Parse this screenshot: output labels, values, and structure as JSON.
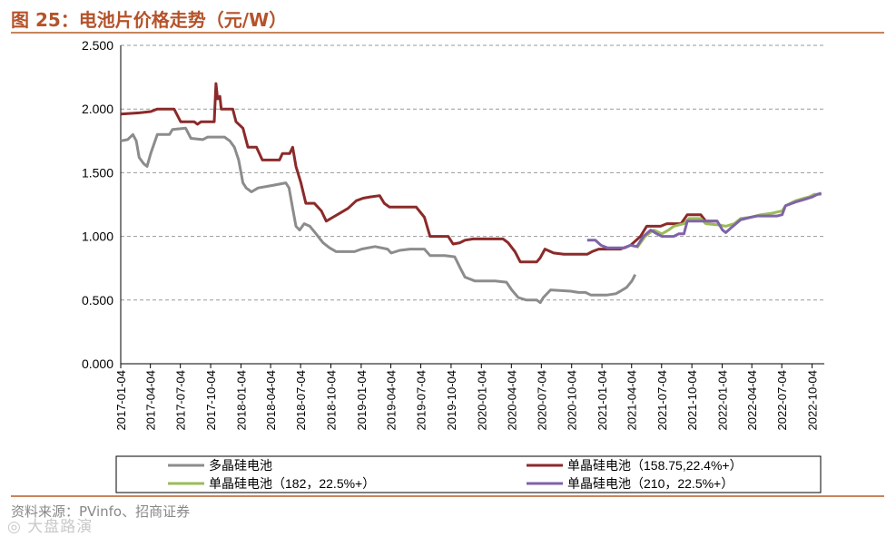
{
  "header": {
    "title": "图 25：电池片价格走势（元/W）"
  },
  "footer": {
    "source": "资料来源：PVinfo、招商证券",
    "watermark": "◎ 大盘路演"
  },
  "chart_data": {
    "type": "line",
    "title": "图 25：电池片价格走势（元/W）",
    "ylabel": "",
    "xlabel": "",
    "ylim": [
      0,
      2.5
    ],
    "yticks": [
      "0.000",
      "0.500",
      "1.000",
      "1.500",
      "2.000",
      "2.500"
    ],
    "xticks": [
      "2017-01-04",
      "2017-04-04",
      "2017-07-04",
      "2017-10-04",
      "2018-01-04",
      "2018-04-04",
      "2018-07-04",
      "2018-10-04",
      "2019-01-04",
      "2019-04-04",
      "2019-07-04",
      "2019-10-04",
      "2020-01-04",
      "2020-04-04",
      "2020-07-04",
      "2020-10-04",
      "2021-01-04",
      "2021-04-04",
      "2021-07-04",
      "2021-10-04",
      "2022-01-04",
      "2022-04-04",
      "2022-07-04",
      "2022-10-04"
    ],
    "grid": "horizontal dashed",
    "legend_position": "bottom",
    "series": [
      {
        "name": "多晶硅电池",
        "color": "#8c8c8c",
        "points": [
          [
            "2017-01-04",
            1.75
          ],
          [
            "2017-01-25",
            1.76
          ],
          [
            "2017-02-10",
            1.8
          ],
          [
            "2017-02-20",
            1.75
          ],
          [
            "2017-03-01",
            1.62
          ],
          [
            "2017-03-15",
            1.57
          ],
          [
            "2017-03-25",
            1.55
          ],
          [
            "2017-04-05",
            1.65
          ],
          [
            "2017-04-25",
            1.8
          ],
          [
            "2017-06-01",
            1.8
          ],
          [
            "2017-06-10",
            1.84
          ],
          [
            "2017-07-20",
            1.85
          ],
          [
            "2017-08-05",
            1.77
          ],
          [
            "2017-09-10",
            1.76
          ],
          [
            "2017-09-25",
            1.78
          ],
          [
            "2017-11-15",
            1.78
          ],
          [
            "2017-12-01",
            1.75
          ],
          [
            "2017-12-15",
            1.7
          ],
          [
            "2017-12-28",
            1.6
          ],
          [
            "2018-01-10",
            1.42
          ],
          [
            "2018-01-20",
            1.38
          ],
          [
            "2018-02-05",
            1.35
          ],
          [
            "2018-02-25",
            1.38
          ],
          [
            "2018-04-10",
            1.4
          ],
          [
            "2018-05-20",
            1.42
          ],
          [
            "2018-05-30",
            1.38
          ],
          [
            "2018-06-10",
            1.22
          ],
          [
            "2018-06-20",
            1.08
          ],
          [
            "2018-07-01",
            1.05
          ],
          [
            "2018-07-15",
            1.1
          ],
          [
            "2018-08-01",
            1.08
          ],
          [
            "2018-08-20",
            1.02
          ],
          [
            "2018-09-10",
            0.95
          ],
          [
            "2018-09-30",
            0.91
          ],
          [
            "2018-10-20",
            0.88
          ],
          [
            "2018-12-15",
            0.88
          ],
          [
            "2019-01-05",
            0.9
          ],
          [
            "2019-02-15",
            0.92
          ],
          [
            "2019-03-25",
            0.9
          ],
          [
            "2019-04-05",
            0.87
          ],
          [
            "2019-05-01",
            0.89
          ],
          [
            "2019-06-01",
            0.9
          ],
          [
            "2019-07-15",
            0.9
          ],
          [
            "2019-08-01",
            0.85
          ],
          [
            "2019-09-15",
            0.85
          ],
          [
            "2019-10-15",
            0.84
          ],
          [
            "2019-11-01",
            0.75
          ],
          [
            "2019-11-15",
            0.68
          ],
          [
            "2019-12-15",
            0.65
          ],
          [
            "2020-02-15",
            0.65
          ],
          [
            "2020-03-20",
            0.64
          ],
          [
            "2020-04-05",
            0.58
          ],
          [
            "2020-04-25",
            0.52
          ],
          [
            "2020-05-20",
            0.5
          ],
          [
            "2020-06-20",
            0.5
          ],
          [
            "2020-07-01",
            0.48
          ],
          [
            "2020-07-10",
            0.52
          ],
          [
            "2020-08-01",
            0.58
          ],
          [
            "2020-10-01",
            0.57
          ],
          [
            "2020-10-25",
            0.56
          ],
          [
            "2020-11-15",
            0.56
          ],
          [
            "2020-12-01",
            0.54
          ],
          [
            "2021-01-20",
            0.54
          ],
          [
            "2021-02-15",
            0.55
          ],
          [
            "2021-03-01",
            0.57
          ],
          [
            "2021-03-20",
            0.6
          ],
          [
            "2021-04-05",
            0.65
          ],
          [
            "2021-04-15",
            0.7
          ]
        ]
      },
      {
        "name": "单晶硅电池（158.75,22.4%+）",
        "color": "#8b2a2a",
        "points": [
          [
            "2017-01-04",
            1.96
          ],
          [
            "2017-03-01",
            1.97
          ],
          [
            "2017-04-05",
            1.98
          ],
          [
            "2017-04-25",
            2.0
          ],
          [
            "2017-06-15",
            2.0
          ],
          [
            "2017-07-05",
            1.9
          ],
          [
            "2017-08-15",
            1.9
          ],
          [
            "2017-08-25",
            1.88
          ],
          [
            "2017-09-05",
            1.9
          ],
          [
            "2017-10-15",
            1.9
          ],
          [
            "2017-10-20",
            2.2
          ],
          [
            "2017-10-25",
            2.08
          ],
          [
            "2017-11-01",
            2.1
          ],
          [
            "2017-11-05",
            2.0
          ],
          [
            "2017-12-10",
            2.0
          ],
          [
            "2017-12-20",
            1.9
          ],
          [
            "2018-01-10",
            1.85
          ],
          [
            "2018-01-25",
            1.7
          ],
          [
            "2018-02-20",
            1.7
          ],
          [
            "2018-03-10",
            1.6
          ],
          [
            "2018-05-01",
            1.6
          ],
          [
            "2018-05-10",
            1.65
          ],
          [
            "2018-06-01",
            1.65
          ],
          [
            "2018-06-10",
            1.7
          ],
          [
            "2018-06-20",
            1.55
          ],
          [
            "2018-07-05",
            1.42
          ],
          [
            "2018-07-20",
            1.26
          ],
          [
            "2018-08-15",
            1.26
          ],
          [
            "2018-09-05",
            1.2
          ],
          [
            "2018-09-20",
            1.12
          ],
          [
            "2018-10-10",
            1.15
          ],
          [
            "2018-10-30",
            1.18
          ],
          [
            "2018-11-25",
            1.22
          ],
          [
            "2018-12-20",
            1.28
          ],
          [
            "2019-01-10",
            1.3
          ],
          [
            "2019-01-31",
            1.31
          ],
          [
            "2019-03-01",
            1.32
          ],
          [
            "2019-03-15",
            1.26
          ],
          [
            "2019-03-31",
            1.23
          ],
          [
            "2019-06-20",
            1.23
          ],
          [
            "2019-07-15",
            1.15
          ],
          [
            "2019-08-01",
            1.0
          ],
          [
            "2019-09-25",
            1.0
          ],
          [
            "2019-10-10",
            0.94
          ],
          [
            "2019-10-31",
            0.95
          ],
          [
            "2019-11-15",
            0.97
          ],
          [
            "2019-12-10",
            0.98
          ],
          [
            "2020-03-10",
            0.98
          ],
          [
            "2020-03-25",
            0.95
          ],
          [
            "2020-04-15",
            0.88
          ],
          [
            "2020-05-01",
            0.8
          ],
          [
            "2020-06-20",
            0.8
          ],
          [
            "2020-06-30",
            0.83
          ],
          [
            "2020-07-15",
            0.9
          ],
          [
            "2020-08-10",
            0.87
          ],
          [
            "2020-09-10",
            0.86
          ],
          [
            "2020-11-01",
            0.86
          ],
          [
            "2020-11-20",
            0.86
          ],
          [
            "2020-12-05",
            0.88
          ],
          [
            "2020-12-25",
            0.9
          ],
          [
            "2021-01-10",
            0.9
          ],
          [
            "2021-03-01",
            0.9
          ],
          [
            "2021-04-01",
            0.93
          ],
          [
            "2021-05-01",
            1.0
          ],
          [
            "2021-05-20",
            1.08
          ],
          [
            "2021-07-01",
            1.08
          ],
          [
            "2021-07-20",
            1.1
          ],
          [
            "2021-09-01",
            1.1
          ],
          [
            "2021-09-20",
            1.17
          ],
          [
            "2021-10-31",
            1.17
          ],
          [
            "2021-11-15",
            1.12
          ],
          [
            "2021-12-20",
            1.12
          ]
        ]
      },
      {
        "name": "单晶硅电池（182，22.5%+）",
        "color": "#9bbb59",
        "points": [
          [
            "2021-04-20",
            0.91
          ],
          [
            "2021-05-15",
            1.0
          ],
          [
            "2021-06-10",
            1.05
          ],
          [
            "2021-07-05",
            1.02
          ],
          [
            "2021-07-25",
            1.05
          ],
          [
            "2021-08-10",
            1.08
          ],
          [
            "2021-09-10",
            1.1
          ],
          [
            "2021-09-25",
            1.14
          ],
          [
            "2021-10-31",
            1.14
          ],
          [
            "2021-11-15",
            1.1
          ],
          [
            "2021-12-25",
            1.09
          ],
          [
            "2022-01-15",
            1.08
          ],
          [
            "2022-02-10",
            1.1
          ],
          [
            "2022-03-01",
            1.14
          ],
          [
            "2022-04-01",
            1.15
          ],
          [
            "2022-05-01",
            1.17
          ],
          [
            "2022-06-01",
            1.18
          ],
          [
            "2022-07-05",
            1.2
          ],
          [
            "2022-07-15",
            1.24
          ],
          [
            "2022-08-15",
            1.28
          ],
          [
            "2022-09-10",
            1.3
          ],
          [
            "2022-09-25",
            1.31
          ],
          [
            "2022-10-10",
            1.33
          ],
          [
            "2022-11-01",
            1.33
          ]
        ]
      },
      {
        "name": "单晶硅电池（210，22.5%+）",
        "color": "#7f63a8",
        "points": [
          [
            "2020-11-20",
            0.97
          ],
          [
            "2020-12-15",
            0.97
          ],
          [
            "2021-01-01",
            0.93
          ],
          [
            "2021-01-20",
            0.91
          ],
          [
            "2021-03-15",
            0.91
          ],
          [
            "2021-03-31",
            0.93
          ],
          [
            "2021-04-20",
            0.92
          ],
          [
            "2021-05-10",
            1.0
          ],
          [
            "2021-06-01",
            1.05
          ],
          [
            "2021-06-20",
            1.02
          ],
          [
            "2021-07-05",
            1.0
          ],
          [
            "2021-08-10",
            1.0
          ],
          [
            "2021-08-25",
            1.02
          ],
          [
            "2021-09-10",
            1.02
          ],
          [
            "2021-09-20",
            1.12
          ],
          [
            "2021-10-15",
            1.12
          ],
          [
            "2021-12-20",
            1.12
          ],
          [
            "2022-01-05",
            1.05
          ],
          [
            "2022-01-15",
            1.03
          ],
          [
            "2022-02-01",
            1.07
          ],
          [
            "2022-03-01",
            1.13
          ],
          [
            "2022-04-01",
            1.15
          ],
          [
            "2022-04-20",
            1.16
          ],
          [
            "2022-06-20",
            1.16
          ],
          [
            "2022-07-05",
            1.17
          ],
          [
            "2022-07-15",
            1.24
          ],
          [
            "2022-08-15",
            1.27
          ],
          [
            "2022-09-10",
            1.29
          ],
          [
            "2022-10-05",
            1.31
          ],
          [
            "2022-10-20",
            1.33
          ],
          [
            "2022-11-01",
            1.34
          ]
        ]
      }
    ]
  }
}
